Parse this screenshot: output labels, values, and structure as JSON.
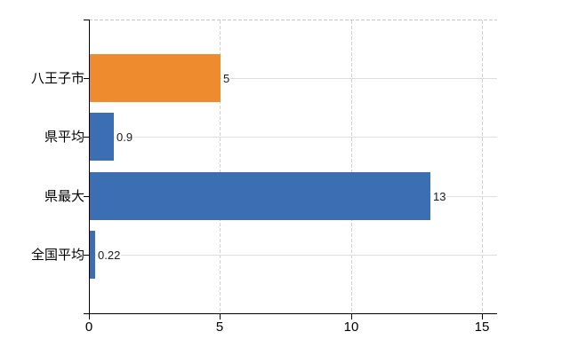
{
  "chart_data": {
    "type": "bar",
    "orientation": "horizontal",
    "title": "",
    "xlabel": "",
    "ylabel": "",
    "categories": [
      "八王子市",
      "県平均",
      "県最大",
      "全国平均"
    ],
    "values": [
      5,
      0.9,
      13,
      0.22
    ],
    "value_labels": [
      "5",
      "0.9",
      "13",
      "0.22"
    ],
    "bar_colors": [
      "#ee8b2e",
      "#3b6eb2",
      "#3b6eb2",
      "#3b6eb2"
    ],
    "x_ticks": [
      0,
      5,
      10,
      15
    ],
    "x_tick_labels": [
      "0",
      "5",
      "10",
      "15"
    ],
    "xlim": [
      0,
      15.58
    ],
    "legend": null,
    "grid": {
      "horizontal": "solid line at each category center",
      "vertical": "dashed line at each nonzero x tick",
      "plot_top_border": "dashed"
    },
    "colors": {
      "accent_orange": "#ee8b2e",
      "accent_blue": "#3b6eb2",
      "axis": "#000000",
      "grid_horizontal": "#d9e0d9",
      "grid_vertical": "#d5ced3",
      "text": "#000000",
      "background": "#ffffff"
    }
  }
}
